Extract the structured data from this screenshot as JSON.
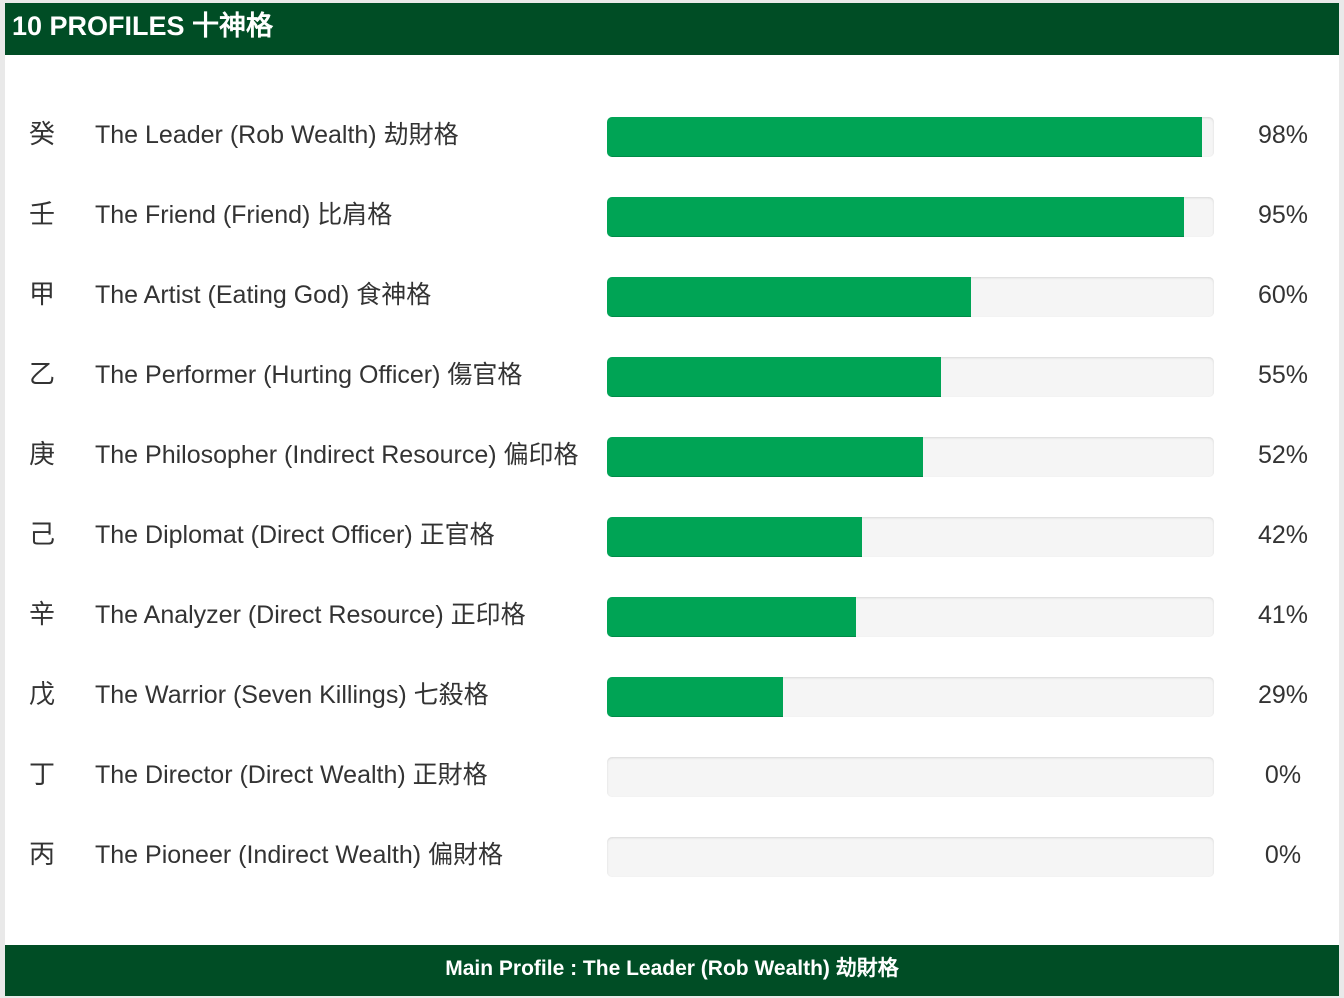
{
  "header": {
    "title": "10 PROFILES 十神格"
  },
  "profiles": [
    {
      "stem": "癸",
      "label": "The Leader (Rob Wealth) 劫財格",
      "percent_text": "98%",
      "value": 98
    },
    {
      "stem": "壬",
      "label": "The Friend (Friend) 比肩格",
      "percent_text": "95%",
      "value": 95
    },
    {
      "stem": "甲",
      "label": "The Artist (Eating God) 食神格",
      "percent_text": "60%",
      "value": 60
    },
    {
      "stem": "乙",
      "label": "The Performer (Hurting Officer) 傷官格",
      "percent_text": "55%",
      "value": 55
    },
    {
      "stem": "庚",
      "label": "The Philosopher (Indirect Resource) 偏印格",
      "percent_text": "52%",
      "value": 52
    },
    {
      "stem": "己",
      "label": "The Diplomat (Direct Officer) 正官格",
      "percent_text": "42%",
      "value": 42
    },
    {
      "stem": "辛",
      "label": "The Analyzer (Direct Resource) 正印格",
      "percent_text": "41%",
      "value": 41
    },
    {
      "stem": "戊",
      "label": "The Warrior (Seven Killings) 七殺格",
      "percent_text": "29%",
      "value": 29
    },
    {
      "stem": "丁",
      "label": "The Director (Direct Wealth) 正財格",
      "percent_text": "0%",
      "value": 0
    },
    {
      "stem": "丙",
      "label": "The Pioneer (Indirect Wealth) 偏財格",
      "percent_text": "0%",
      "value": 0
    }
  ],
  "footer": {
    "text": "Main Profile : The Leader (Rob Wealth) 劫財格"
  },
  "colors": {
    "header_bg": "#004d25",
    "bar_fill": "#00a455",
    "bar_track": "#f5f5f5"
  }
}
